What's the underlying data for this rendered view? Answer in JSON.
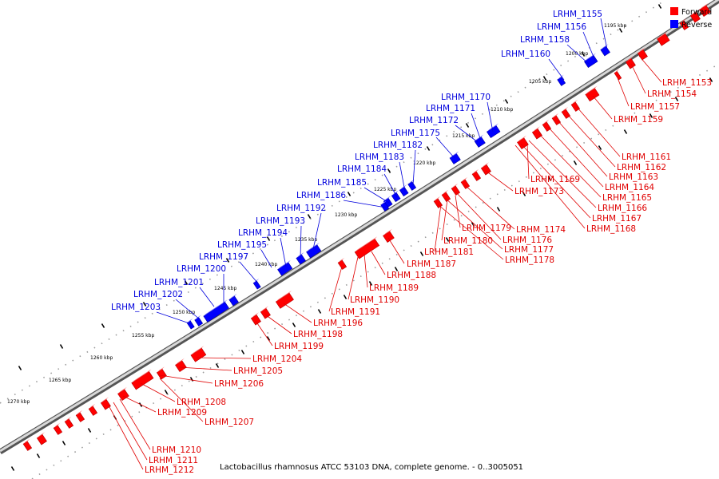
{
  "legend": [
    {
      "label": "Forward",
      "color": "#ff0000"
    },
    {
      "label": "Reverse",
      "color": "#0000ff"
    }
  ],
  "caption": "Lactobacillus rhamnosus ATCC 53103 DNA, complete genome. - 0..3005051",
  "scale_unit": "kbp",
  "ticks": [
    "1195 kbp",
    "1200 kbp",
    "1205 kbp",
    "1210 kbp",
    "1215 kbp",
    "1220 kbp",
    "1225 kbp",
    "1230 kbp",
    "1235 kbp",
    "1240 kbp",
    "1245 kbp",
    "1250 kbp",
    "1255 kbp",
    "1260 kbp",
    "1265 kbp",
    "1270 kbp"
  ],
  "reverse_genes": [
    "LRHM_1155",
    "LRHM_1156",
    "LRHM_1158",
    "LRHM_1160",
    "LRHM_1170",
    "LRHM_1171",
    "LRHM_1172",
    "LRHM_1175",
    "LRHM_1182",
    "LRHM_1183",
    "LRHM_1184",
    "LRHM_1185",
    "LRHM_1186",
    "LRHM_1192",
    "LRHM_1193",
    "LRHM_1194",
    "LRHM_1195",
    "LRHM_1197",
    "LRHM_1200",
    "LRHM_1201",
    "LRHM_1202",
    "LRHM_1203"
  ],
  "forward_genes": [
    "LRHM_1153",
    "LRHM_1154",
    "LRHM_1157",
    "LRHM_1159",
    "LRHM_1161",
    "LRHM_1162",
    "LRHM_1163",
    "LRHM_1164",
    "LRHM_1165",
    "LRHM_1166",
    "LRHM_1167",
    "LRHM_1168",
    "LRHM_1169",
    "LRHM_1173",
    "LRHM_1174",
    "LRHM_1176",
    "LRHM_1177",
    "LRHM_1178",
    "LRHM_1179",
    "LRHM_1180",
    "LRHM_1181",
    "LRHM_1187",
    "LRHM_1188",
    "LRHM_1189",
    "LRHM_1190",
    "LRHM_1191",
    "LRHM_1196",
    "LRHM_1198",
    "LRHM_1199",
    "LRHM_1204",
    "LRHM_1205",
    "LRHM_1206",
    "LRHM_1207",
    "LRHM_1208",
    "LRHM_1209",
    "LRHM_1210",
    "LRHM_1211",
    "LRHM_1212"
  ]
}
